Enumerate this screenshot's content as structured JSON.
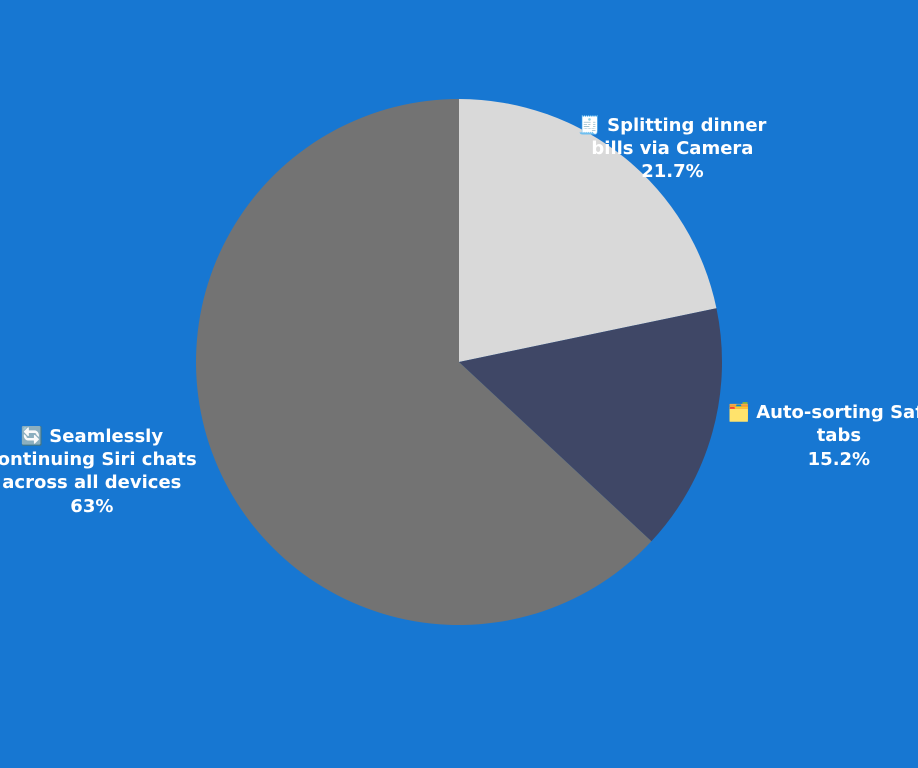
{
  "chart_data": {
    "type": "pie",
    "categories": [
      "🧾 Splitting dinner bills via Camera",
      "🗂️ Auto-sorting Safari tabs",
      "🔄 Seamlessly continuing Siri chats across all devices"
    ],
    "values": [
      21.7,
      15.2,
      63
    ],
    "value_labels": [
      "21.7%",
      "15.2%",
      "63%"
    ],
    "colors": [
      "#d9d9d9",
      "#3f4766",
      "#737373"
    ],
    "start_angle": "top",
    "direction": "clockwise"
  }
}
